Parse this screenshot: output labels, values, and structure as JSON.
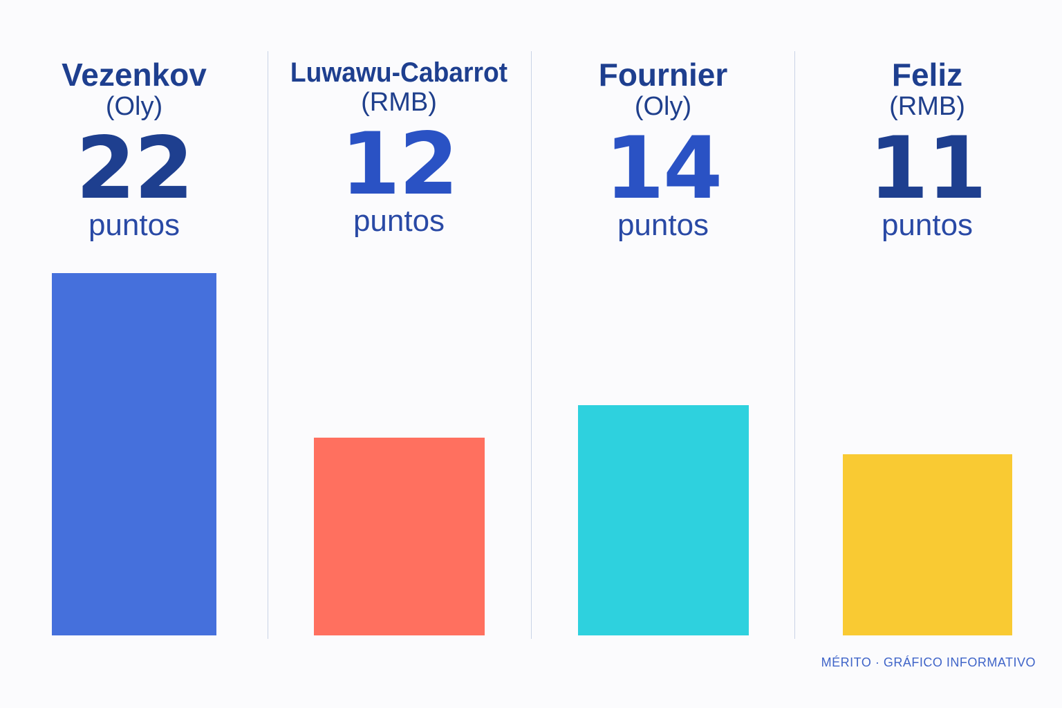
{
  "chart_data": {
    "type": "bar",
    "categories": [
      "Vezenkov",
      "Luwawu-Cabarrot",
      "Fournier",
      "Feliz"
    ],
    "teams": [
      "(Oly)",
      "(RMB)",
      "(Oly)",
      "(RMB)"
    ],
    "values": [
      22,
      12,
      14,
      11
    ],
    "value_labels": [
      "22",
      "12",
      "14",
      "11"
    ],
    "unit": "puntos",
    "colors": [
      "#4570dc",
      "#ff705f",
      "#2ed1de",
      "#f9ca33"
    ],
    "value_colors": [
      "#1e3f8f",
      "#2a52c4",
      "#2a52c4",
      "#1e3f8f"
    ],
    "ylim": [
      0,
      22
    ],
    "grid": false
  },
  "footer": "MÉRITO · GRÁFICO INFORMATIVO"
}
